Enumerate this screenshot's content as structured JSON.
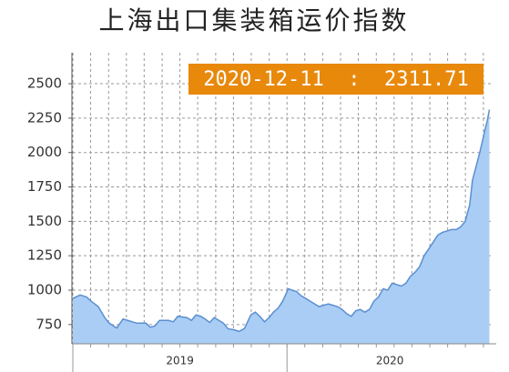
{
  "chart_data": {
    "type": "area",
    "title": "上海出口集装箱运价指数",
    "annotation": "2020-12-11  :  2311.71",
    "color": "#a9cdf4",
    "line_color": "#5b8fd1",
    "annotation_color": "#e8890c",
    "x": [
      2019.0,
      2019.034,
      2019.064,
      2019.085,
      2019.119,
      2019.149,
      2019.17,
      2019.205,
      2019.234,
      2019.256,
      2019.298,
      2019.341,
      2019.362,
      2019.383,
      2019.405,
      2019.447,
      2019.469,
      2019.49,
      2019.533,
      2019.554,
      2019.575,
      2019.597,
      2019.618,
      2019.639,
      2019.66,
      2019.682,
      2019.703,
      2019.724,
      2019.758,
      2019.775,
      2019.801,
      2019.831,
      2019.852,
      2019.873,
      2019.895,
      2019.916,
      2019.937,
      2019.959,
      2019.98,
      2020.006,
      2020.023,
      2020.044,
      2020.065,
      2020.087,
      2020.108,
      2020.129,
      2020.15,
      2020.172,
      2020.193,
      2020.214,
      2020.236,
      2020.257,
      2020.278,
      2020.3,
      2020.321,
      2020.342,
      2020.363,
      2020.385,
      2020.406,
      2020.427,
      2020.449,
      2020.47,
      2020.491,
      2020.513,
      2020.534,
      2020.555,
      2020.576,
      2020.598,
      2020.619,
      2020.64,
      2020.662,
      2020.683,
      2020.704,
      2020.726,
      2020.747,
      2020.768,
      2020.79,
      2020.811,
      2020.832,
      2020.853,
      2020.866,
      2020.883,
      2020.9,
      2020.915,
      2020.925,
      2020.935,
      2020.945
    ],
    "values": [
      940,
      965,
      950,
      920,
      880,
      800,
      760,
      725,
      790,
      780,
      760,
      760,
      730,
      740,
      780,
      780,
      770,
      810,
      800,
      780,
      820,
      810,
      790,
      765,
      800,
      780,
      760,
      720,
      710,
      700,
      720,
      820,
      840,
      810,
      770,
      800,
      840,
      870,
      920,
      1010,
      1000,
      990,
      960,
      940,
      920,
      900,
      880,
      890,
      900,
      890,
      880,
      860,
      830,
      810,
      850,
      860,
      840,
      860,
      920,
      950,
      1010,
      1000,
      1050,
      1040,
      1030,
      1050,
      1100,
      1130,
      1170,
      1250,
      1300,
      1350,
      1400,
      1420,
      1430,
      1440,
      1440,
      1460,
      1500,
      1620,
      1800,
      1900,
      2000,
      2100,
      2170,
      2230,
      2311.71
    ],
    "xlim": [
      2019,
      2020.96
    ],
    "xticks": [
      2019,
      2019.083,
      2019.167,
      2019.25,
      2019.333,
      2019.417,
      2019.5,
      2019.583,
      2019.667,
      2019.75,
      2019.833,
      2019.917,
      2020,
      2020.083,
      2020.167,
      2020.25,
      2020.333,
      2020.417,
      2020.5,
      2020.583,
      2020.667,
      2020.75,
      2020.833,
      2020.917
    ],
    "year_ticks": [
      2019,
      2020
    ],
    "ylim": [
      610,
      2725
    ],
    "yticks": [
      750,
      1000,
      1250,
      1500,
      1750,
      2000,
      2250,
      2500
    ],
    "grid": true
  }
}
